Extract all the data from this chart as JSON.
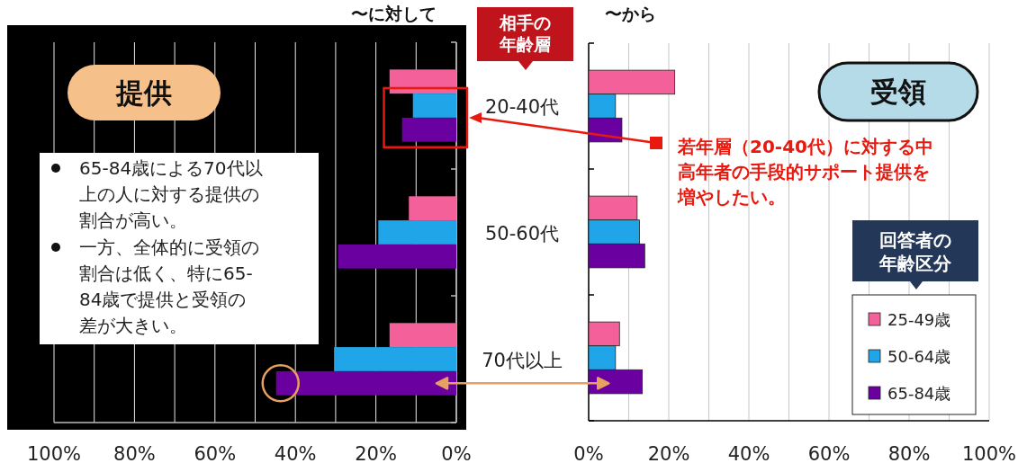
{
  "chart_data": [
    {
      "type": "bar",
      "orientation": "horizontal",
      "title": "提供",
      "subtitle": "〜に対して",
      "ylabel": "相手の年齢層",
      "categories": [
        "20-40代",
        "50-60代",
        "70代以上"
      ],
      "series": [
        {
          "color": "#f4609a",
          "values": [
            16.6,
            11.8,
            16.6
          ]
        },
        {
          "color": "#1fa5e8",
          "values": [
            10.8,
            19.4,
            30.4
          ]
        },
        {
          "color": "#6a00a0",
          "values": [
            13.5,
            29.4,
            44.8
          ]
        }
      ],
      "xlim": [
        100,
        0
      ],
      "xticks": [
        {
          "value": 100,
          "label": "100%"
        },
        {
          "value": 80,
          "label": "80%"
        },
        {
          "value": 60,
          "label": "60%"
        },
        {
          "value": 40,
          "label": "40%"
        },
        {
          "value": 20,
          "label": "20%"
        },
        {
          "value": 0,
          "label": "0%"
        }
      ],
      "grid": "x",
      "annotations": [
        "65-84歳による70代以上の人に対する提供の割合が高い。",
        "一方、全体的に受領の割合は低く、特に65-84歳で提供と受領の差が大きい。"
      ]
    },
    {
      "type": "bar",
      "orientation": "horizontal",
      "title": "受領",
      "subtitle": "〜から",
      "legend_title": "回答者の年齢区分",
      "categories": [
        null,
        null,
        null
      ],
      "tick_labels": "x",
      "series": [
        {
          "name": "25-49歳",
          "color": "#f4609a",
          "values": [
            21.5,
            12.1,
            7.7
          ]
        },
        {
          "name": "50-64歳",
          "color": "#1fa5e8",
          "values": [
            6.7,
            12.7,
            6.7
          ]
        },
        {
          "name": "65-84歳",
          "color": "#6a00a0",
          "values": [
            8.3,
            14.0,
            13.4
          ]
        }
      ],
      "xlim": [
        0,
        100
      ],
      "xticks": [
        {
          "value": 0,
          "label": "0%"
        },
        {
          "value": 20,
          "label": "20%"
        },
        {
          "value": 40,
          "label": "40%"
        },
        {
          "value": 60,
          "label": "60%"
        },
        {
          "value": 80,
          "label": "80%"
        },
        {
          "value": 100,
          "label": "100%"
        }
      ],
      "grid": "x",
      "legend": "bottom right",
      "annotations": [
        "若年層（20-40代）に対する中高年者の手段的サポート提供を増やしたい。"
      ]
    }
  ]
}
